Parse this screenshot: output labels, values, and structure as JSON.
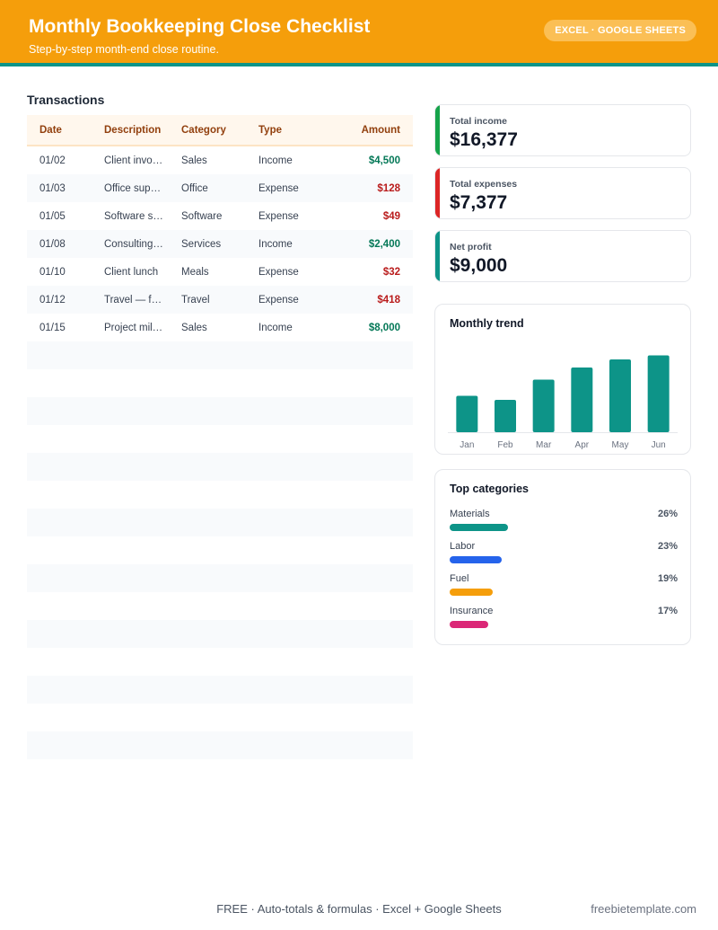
{
  "header": {
    "title": "Monthly Bookkeeping Close Checklist",
    "subtitle": "Step-by-step month-end close routine.",
    "badge": "EXCEL · GOOGLE SHEETS",
    "accent": "#f59e0b",
    "line_color": "#0d9488"
  },
  "transactions": {
    "title": "Transactions",
    "columns": [
      "Date",
      "Description",
      "Category",
      "Type",
      "Amount"
    ],
    "rows": [
      {
        "date": "01/02",
        "description": "Client invo…",
        "category": "Sales",
        "type": "Income",
        "amount": "$4,500"
      },
      {
        "date": "01/03",
        "description": "Office sup…",
        "category": "Office",
        "type": "Expense",
        "amount": "$128"
      },
      {
        "date": "01/05",
        "description": "Software s…",
        "category": "Software",
        "type": "Expense",
        "amount": "$49"
      },
      {
        "date": "01/08",
        "description": "Consulting…",
        "category": "Services",
        "type": "Income",
        "amount": "$2,400"
      },
      {
        "date": "01/10",
        "description": "Client lunch",
        "category": "Meals",
        "type": "Expense",
        "amount": "$32"
      },
      {
        "date": "01/12",
        "description": "Travel — f…",
        "category": "Travel",
        "type": "Expense",
        "amount": "$418"
      },
      {
        "date": "01/15",
        "description": "Project mil…",
        "category": "Sales",
        "type": "Income",
        "amount": "$8,000"
      }
    ],
    "empty_rows": 15
  },
  "kpis": [
    {
      "label": "Total income",
      "value": "$16,377",
      "color": "#16a34a"
    },
    {
      "label": "Total expenses",
      "value": "$7,377",
      "color": "#dc2626"
    },
    {
      "label": "Net profit",
      "value": "$9,000",
      "color": "#0d9488"
    }
  ],
  "trend": {
    "title": "Monthly trend"
  },
  "chart_data": {
    "type": "bar",
    "categories": [
      "Jan",
      "Feb",
      "Mar",
      "Apr",
      "May",
      "Jun"
    ],
    "values": [
      45,
      40,
      65,
      80,
      90,
      95
    ],
    "ylim": [
      0,
      100
    ],
    "color": "#0d9488",
    "grid": false
  },
  "top_categories": {
    "title": "Top categories",
    "items": [
      {
        "name": "Materials",
        "pct": "26%",
        "fraction": 0.26,
        "color": "#0d9488"
      },
      {
        "name": "Labor",
        "pct": "23%",
        "fraction": 0.23,
        "color": "#2563eb"
      },
      {
        "name": "Fuel",
        "pct": "19%",
        "fraction": 0.19,
        "color": "#f59e0b"
      },
      {
        "name": "Insurance",
        "pct": "17%",
        "fraction": 0.17,
        "color": "#db2777"
      }
    ]
  },
  "footer": {
    "text": "FREE  ·  Auto-totals & formulas  ·  Excel + Google Sheets",
    "site": "freebietemplate.com"
  }
}
